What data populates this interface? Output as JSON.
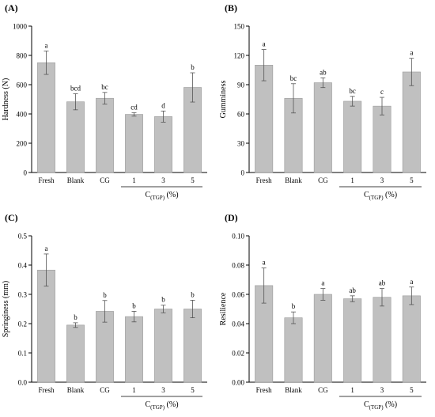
{
  "chart_data": [
    {
      "panel_label": "(A)",
      "type": "bar",
      "ylabel": "Hardness (N)",
      "ylim": [
        0,
        1000
      ],
      "yticks": [
        "0",
        "200",
        "400",
        "600",
        "800",
        "1000"
      ],
      "categories": [
        "Fresh",
        "Blank",
        "CG",
        "1",
        "3",
        "5"
      ],
      "values": [
        750,
        483,
        507,
        397,
        382,
        581
      ],
      "errors": [
        80,
        55,
        40,
        12,
        38,
        100
      ],
      "letters": [
        "a",
        "bcd",
        "bc",
        "cd",
        "d",
        "b"
      ],
      "group_label_main": "C",
      "group_label_sub": "(TGP)",
      "group_label_tail": " (%)"
    },
    {
      "panel_label": "(B)",
      "type": "bar",
      "ylabel": "Gumminess",
      "ylim": [
        0,
        150
      ],
      "yticks": [
        "0",
        "30",
        "60",
        "90",
        "120",
        "150"
      ],
      "categories": [
        "Fresh",
        "Blank",
        "CG",
        "1",
        "3",
        "5"
      ],
      "values": [
        110,
        76,
        92,
        73,
        68,
        103
      ],
      "errors": [
        16,
        15,
        5,
        5,
        9,
        14
      ],
      "letters": [
        "a",
        "bc",
        "ab",
        "bc",
        "c",
        "a"
      ],
      "group_label_main": "C",
      "group_label_sub": "(TGP)",
      "group_label_tail": " (%)"
    },
    {
      "panel_label": "(C)",
      "type": "bar",
      "ylabel": "Springiness (mm)",
      "ylim": [
        0,
        0.5
      ],
      "yticks": [
        "0.0",
        "0.1",
        "0.2",
        "0.3",
        "0.4",
        "0.5"
      ],
      "categories": [
        "Fresh",
        "Blank",
        "CG",
        "1",
        "3",
        "5"
      ],
      "values": [
        0.383,
        0.195,
        0.242,
        0.224,
        0.25,
        0.25
      ],
      "errors": [
        0.055,
        0.008,
        0.037,
        0.018,
        0.013,
        0.03
      ],
      "letters": [
        "a",
        "b",
        "b",
        "b",
        "b",
        "b"
      ],
      "group_label_main": "C",
      "group_label_sub": "(TGP)",
      "group_label_tail": " (%)"
    },
    {
      "panel_label": "(D)",
      "type": "bar",
      "ylabel": "Resilience",
      "ylim": [
        0,
        0.1
      ],
      "yticks": [
        "0.00",
        "0.02",
        "0.04",
        "0.06",
        "0.08",
        "0.10"
      ],
      "categories": [
        "Fresh",
        "Blank",
        "CG",
        "1",
        "3",
        "5"
      ],
      "values": [
        0.066,
        0.044,
        0.06,
        0.057,
        0.058,
        0.059
      ],
      "errors": [
        0.012,
        0.004,
        0.004,
        0.002,
        0.006,
        0.006
      ],
      "letters": [
        "a",
        "b",
        "a",
        "ab",
        "ab",
        "a"
      ],
      "group_label_main": "C",
      "group_label_sub": "(TGP)",
      "group_label_tail": " (%)"
    }
  ],
  "colors": {
    "bar_fill": "#c0c0c0",
    "bar_stroke": "#9a9a9a",
    "axis": "#000000"
  }
}
